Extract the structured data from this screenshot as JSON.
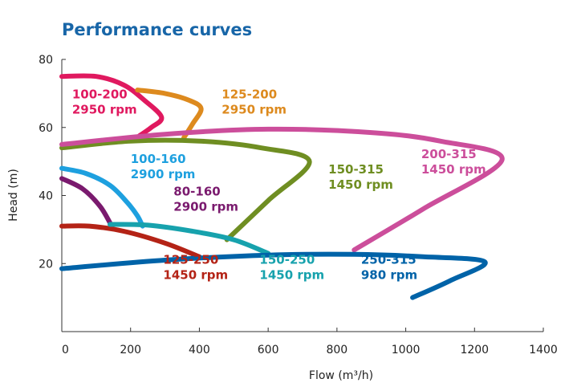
{
  "chart_data": {
    "type": "line",
    "title": "Performance curves",
    "xlabel": "Flow (m³/h)",
    "ylabel": "Head (m)",
    "xlim": [
      0,
      1400
    ],
    "ylim": [
      0,
      80
    ],
    "xticks": [
      "0",
      "200",
      "400",
      "600",
      "800",
      "1000",
      "1200",
      "1400"
    ],
    "yticks": [
      "20",
      "40",
      "60",
      "80"
    ],
    "grid": false,
    "legend": "none",
    "series": [
      {
        "label_lines": [
          "100-200",
          "2950 rpm"
        ],
        "color": "#e0195f",
        "x": [
          0,
          100,
          180,
          240,
          290,
          260,
          225
        ],
        "y": [
          75,
          75,
          72.5,
          68,
          63,
          60,
          57.5
        ]
      },
      {
        "label_lines": [
          "125-200",
          "2950 rpm"
        ],
        "color": "#dd8a1e",
        "x": [
          220,
          300,
          370,
          405,
          380,
          355
        ],
        "y": [
          71,
          70,
          68,
          65.5,
          61,
          57
        ]
      },
      {
        "label_lines": [
          "100-160",
          "2900 rpm"
        ],
        "color": "#1ea0df",
        "x": [
          0,
          70,
          140,
          190,
          220,
          235
        ],
        "y": [
          48,
          46.5,
          43,
          38,
          34,
          31
        ]
      },
      {
        "label_lines": [
          "80-160",
          "2900 rpm"
        ],
        "color": "#7a1a6e",
        "x": [
          0,
          60,
          110,
          140
        ],
        "y": [
          45,
          42,
          37,
          32
        ]
      },
      {
        "label_lines": [
          "150-315",
          "1450 rpm"
        ],
        "color": "#6f8e22",
        "x": [
          0,
          200,
          400,
          580,
          720,
          600,
          480
        ],
        "y": [
          54,
          56,
          56,
          54,
          50,
          38.5,
          27
        ]
      },
      {
        "label_lines": [
          "200-315",
          "1450 rpm"
        ],
        "color": "#cc4e9b",
        "x": [
          0,
          300,
          600,
          900,
          1100,
          1280,
          1050,
          850
        ],
        "y": [
          55,
          58,
          59.5,
          58.5,
          56,
          50.5,
          36,
          24
        ]
      },
      {
        "label_lines": [
          "125-250",
          "1450 rpm"
        ],
        "color": "#b42316",
        "x": [
          0,
          80,
          180,
          300,
          400
        ],
        "y": [
          31,
          31,
          29.5,
          26,
          22
        ]
      },
      {
        "label_lines": [
          "150-250",
          "1450 rpm"
        ],
        "color": "#17a2ad",
        "x": [
          140,
          250,
          380,
          500,
          600
        ],
        "y": [
          31.5,
          31.3,
          29.5,
          27,
          23
        ]
      },
      {
        "label_lines": [
          "250-315",
          "980 rpm"
        ],
        "color": "#0063a8",
        "x": [
          0,
          300,
          600,
          850,
          1050,
          1230,
          1130,
          1020
        ],
        "y": [
          18.5,
          21,
          22.5,
          22.7,
          22,
          20.5,
          15,
          10
        ]
      }
    ],
    "label_anchors": [
      {
        "x": 30,
        "y": 68.5
      },
      {
        "x": 465,
        "y": 68.5
      },
      {
        "x": 200,
        "y": 49.5
      },
      {
        "x": 325,
        "y": 40
      },
      {
        "x": 775,
        "y": 46.5
      },
      {
        "x": 1045,
        "y": 51
      },
      {
        "x": 295,
        "y": 20
      },
      {
        "x": 575,
        "y": 20
      },
      {
        "x": 870,
        "y": 20
      }
    ]
  }
}
